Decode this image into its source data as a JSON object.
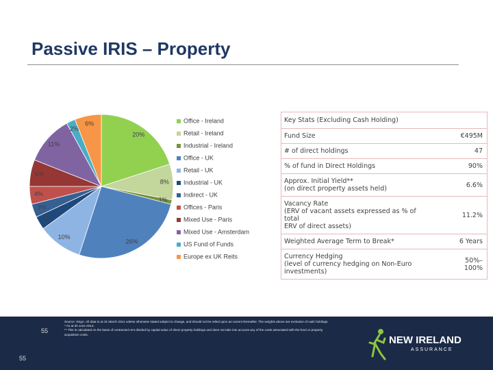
{
  "header": {
    "title": "Passive IRIS – Property"
  },
  "chart_data": {
    "type": "pie",
    "categories": [
      "Office - Ireland",
      "Retail - Ireland",
      "Industrial - Ireland",
      "Office - UK",
      "Retail - UK",
      "Industrial - UK",
      "Indirect - UK",
      "Offices - Paris",
      "Mixed Use - Paris",
      "Mixed Use - Amsterdam",
      "US Fund of Funds",
      "Europe ex UK Reits"
    ],
    "values": [
      20,
      8,
      1,
      26,
      10,
      3,
      3,
      4,
      6,
      11,
      2,
      6
    ],
    "value_labels": [
      "20%",
      "8%",
      "1%",
      "26%",
      "10%",
      "3%",
      "3%",
      "4%",
      "6%",
      "11%",
      "2%",
      "6%"
    ],
    "colors": [
      "#92d050",
      "#c3d69b",
      "#77933c",
      "#4f81bd",
      "#8eb4e3",
      "#1f497d",
      "#376092",
      "#c0504d",
      "#953735",
      "#8064a2",
      "#4bacc6",
      "#f79646"
    ],
    "legend": "right"
  },
  "table": {
    "title": "Key Stats (Excluding Cash Holding)",
    "rows": [
      {
        "label": [
          "Fund Size"
        ],
        "value": [
          "€495M"
        ]
      },
      {
        "label": [
          "# of direct holdings"
        ],
        "value": [
          "47"
        ]
      },
      {
        "label": [
          "% of fund in Direct Holdings"
        ],
        "value": [
          "90%"
        ]
      },
      {
        "label": [
          "Approx. Initial Yield**",
          "(on direct property assets held)"
        ],
        "value": [
          "6.6%"
        ]
      },
      {
        "label": [
          "Vacancy Rate",
          "(ERV of vacant assets expressed as % of total",
          "ERV of direct assets)"
        ],
        "value": [
          "11.2%"
        ]
      },
      {
        "label": [
          "Weighted Average Term to Break*"
        ],
        "value": [
          "6 Years"
        ]
      },
      {
        "label": [
          "Currency Hedging",
          "(level of currency hedging on Non-Euro",
          "investments)"
        ],
        "value": [
          "50%–",
          "100%"
        ]
      }
    ]
  },
  "footer": {
    "page_number": "55",
    "page_number_small": "55",
    "notes": [
      "Source: SSgA. All data to at 31 March 2014 unless otherwise stated subject to change, and should not be relied upon as current thereafter. The weights above are exclusive of cash holdings.",
      "* As at 30 June 2013.",
      "** This is calculated on the basis of contracted rent divided by capital value of direct property holdings and does not take into account any of the costs associated with the fund or property acquisition costs."
    ],
    "logo_main": "NEW IRELAND",
    "logo_sub": "ASSURANCE"
  }
}
